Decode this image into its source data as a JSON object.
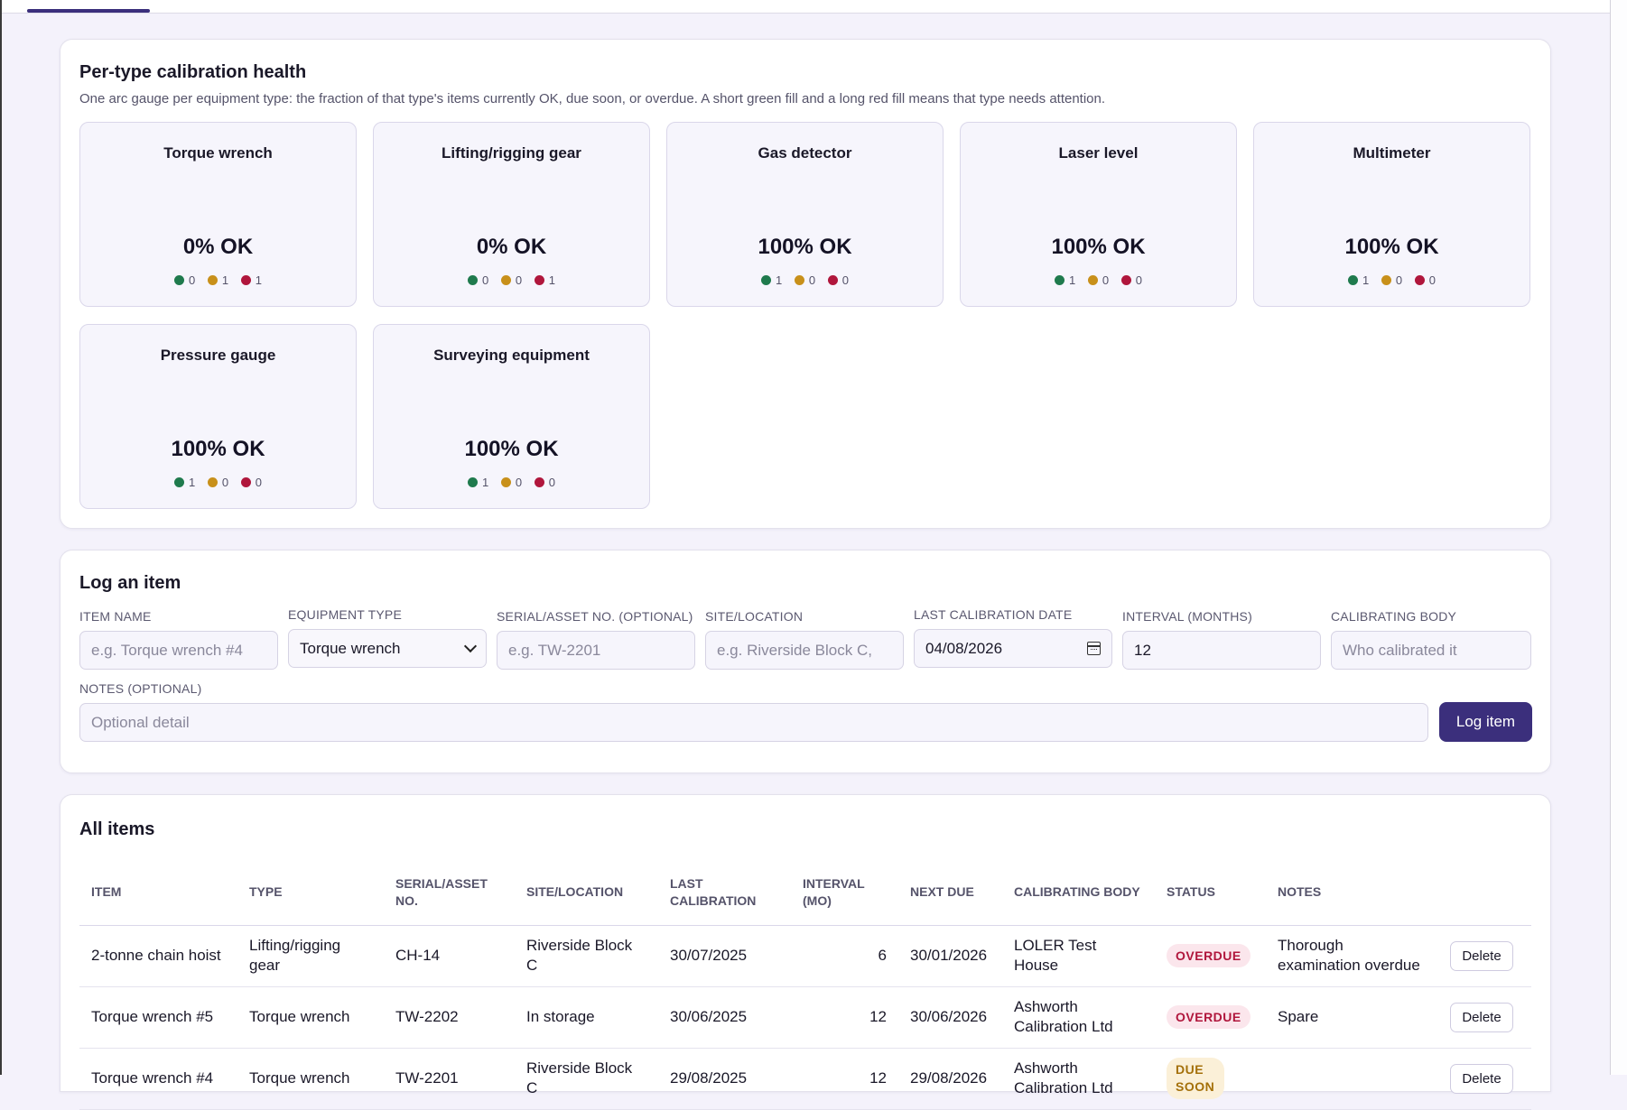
{
  "health": {
    "title": "Per-type calibration health",
    "subtitle": "One arc gauge per equipment type: the fraction of that type's items currently OK, due soon, or overdue. A short green fill and a long red fill means that type needs attention.",
    "colors": {
      "ok": "#1f7a4d",
      "due": "#c8901a",
      "overdue": "#b0163c"
    },
    "gauges": [
      {
        "name": "Torque wrench",
        "pct": "0% OK",
        "ok": "0",
        "due": "1",
        "overdue": "1"
      },
      {
        "name": "Lifting/rigging gear",
        "pct": "0% OK",
        "ok": "0",
        "due": "0",
        "overdue": "1"
      },
      {
        "name": "Gas detector",
        "pct": "100% OK",
        "ok": "1",
        "due": "0",
        "overdue": "0"
      },
      {
        "name": "Laser level",
        "pct": "100% OK",
        "ok": "1",
        "due": "0",
        "overdue": "0"
      },
      {
        "name": "Multimeter",
        "pct": "100% OK",
        "ok": "1",
        "due": "0",
        "overdue": "0"
      },
      {
        "name": "Pressure gauge",
        "pct": "100% OK",
        "ok": "1",
        "due": "0",
        "overdue": "0"
      },
      {
        "name": "Surveying equipment",
        "pct": "100% OK",
        "ok": "1",
        "due": "0",
        "overdue": "0"
      }
    ]
  },
  "log": {
    "title": "Log an item",
    "item_name": {
      "label": "Item name",
      "placeholder": "e.g. Torque wrench #4"
    },
    "equipment_type": {
      "label": "Equipment type",
      "value": "Torque wrench"
    },
    "serial": {
      "label": "Serial/asset no. (optional)",
      "placeholder": "e.g. TW-2201"
    },
    "site": {
      "label": "Site/location",
      "placeholder": "e.g. Riverside Block C,"
    },
    "last_cal": {
      "label": "Last calibration date",
      "value": "04/08/2026"
    },
    "interval": {
      "label": "Interval (months)",
      "value": "12"
    },
    "body": {
      "label": "Calibrating body",
      "placeholder": "Who calibrated it"
    },
    "notes": {
      "label": "Notes (optional)",
      "placeholder": "Optional detail"
    },
    "submit_label": "Log item"
  },
  "items": {
    "title": "All items",
    "columns": [
      "Item",
      "Type",
      "Serial/asset no.",
      "Site/location",
      "Last calibration",
      "Interval (mo)",
      "Next due",
      "Calibrating body",
      "Status",
      "Notes",
      ""
    ],
    "delete_label": "Delete",
    "rows": [
      {
        "item": "2-tonne chain hoist",
        "type": "Lifting/rigging gear",
        "serial": "CH-14",
        "site": "Riverside Block C",
        "last": "30/07/2025",
        "interval": "6",
        "next": "30/01/2026",
        "body": "LOLER Test House",
        "status": "OVERDUE",
        "notes": "Thorough examination overdue"
      },
      {
        "item": "Torque wrench #5",
        "type": "Torque wrench",
        "serial": "TW-2202",
        "site": "In storage",
        "last": "30/06/2025",
        "interval": "12",
        "next": "30/06/2026",
        "body": "Ashworth Calibration Ltd",
        "status": "OVERDUE",
        "notes": "Spare"
      },
      {
        "item": "Torque wrench #4",
        "type": "Torque wrench",
        "serial": "TW-2201",
        "site": "Riverside Block C",
        "last": "29/08/2025",
        "interval": "12",
        "next": "29/08/2026",
        "body": "Ashworth Calibration Ltd",
        "status": "DUE SOON",
        "notes": ""
      }
    ]
  }
}
